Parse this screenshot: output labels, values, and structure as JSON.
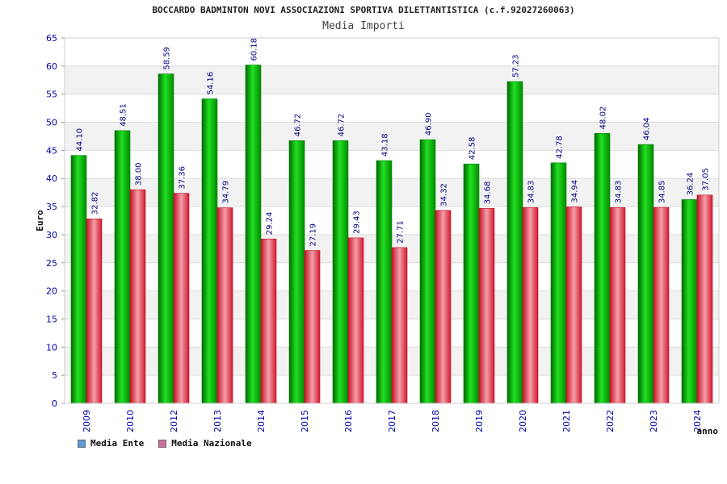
{
  "title": "BOCCARDO BADMINTON NOVI ASSOCIAZIONI SPORTIVA DILETTANTISTICA (c.f.92027260063)",
  "subtitle": "Media Importi",
  "colors": {
    "ente": "#00b000",
    "nazionale": "#e8505a",
    "legend_ente": "#5b9bd5",
    "legend_nazionale": "#d070a0",
    "axis_text": "#0000aa"
  },
  "chart_data": {
    "type": "bar",
    "title": "BOCCARDO BADMINTON NOVI ASSOCIAZIONI SPORTIVA DILETTANTISTICA (c.f.92027260063)",
    "subtitle": "Media Importi",
    "xlabel": "anno",
    "ylabel": "Euro",
    "ylim": [
      0,
      65
    ],
    "yticks": [
      0,
      5,
      10,
      15,
      20,
      25,
      30,
      35,
      40,
      45,
      50,
      55,
      60,
      65
    ],
    "categories": [
      "2009",
      "2010",
      "2012",
      "2013",
      "2014",
      "2015",
      "2016",
      "2017",
      "2018",
      "2019",
      "2020",
      "2021",
      "2022",
      "2023",
      "2024"
    ],
    "series": [
      {
        "name": "Media Ente",
        "values": [
          44.1,
          48.51,
          58.59,
          54.16,
          60.18,
          46.72,
          46.72,
          43.18,
          46.9,
          42.58,
          57.23,
          42.78,
          48.02,
          46.04,
          36.24
        ]
      },
      {
        "name": "Media Nazionale",
        "values": [
          32.82,
          38.0,
          37.36,
          34.79,
          29.24,
          27.19,
          29.43,
          27.71,
          34.32,
          34.68,
          34.83,
          34.94,
          34.83,
          34.85,
          37.05
        ]
      }
    ],
    "legend": "bottom-left",
    "grid": true
  }
}
